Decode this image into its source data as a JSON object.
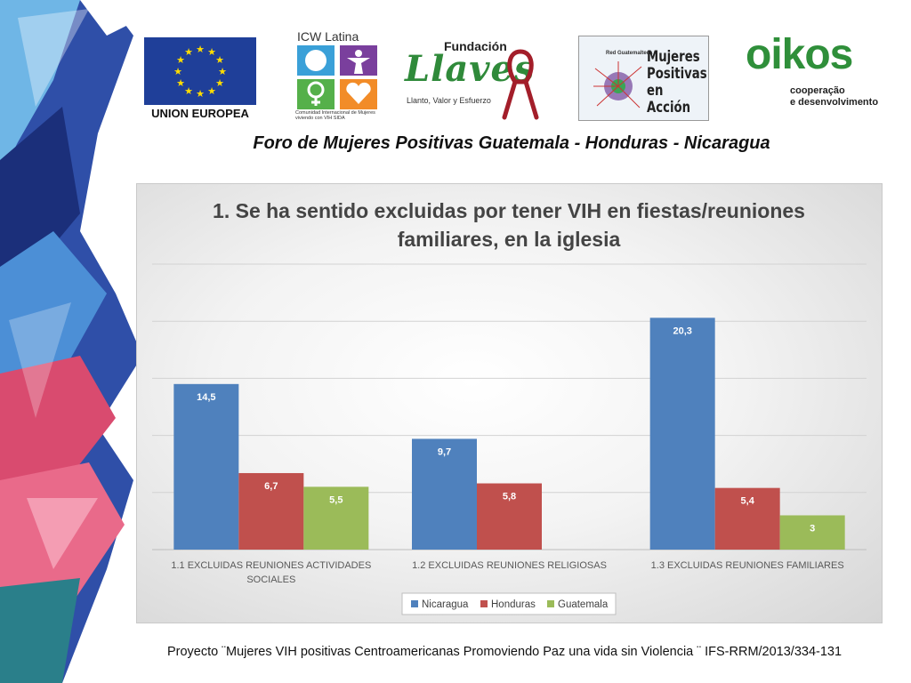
{
  "logos": {
    "eu": {
      "text": "UNION EUROPEA",
      "color": "#1f3f99"
    },
    "icw": {
      "title": "ICW Latina",
      "subtitle": "Comunidad Internacional de Mujeres viviendo con VIH SIDA"
    },
    "llaves": {
      "top": "Fundación",
      "name": "Llaves",
      "tagline": "Llanto, Valor y Esfuerzo"
    },
    "mujeres": {
      "network": "Red Guatemalteca",
      "name": "Mujeres Positivas en Acción"
    },
    "oikos": {
      "name": "oikos",
      "line1": "cooperação",
      "line2": "e desenvolvimento"
    }
  },
  "slide_title": "Foro de Mujeres Positivas Guatemala - Honduras - Nicaragua",
  "footer": "Proyecto ¨Mujeres VIH positivas Centroamericanas Promoviendo Paz una vida sin Violencia ¨ IFS-RRM/2013/334-131",
  "chart_data": {
    "type": "bar",
    "title": "1. Se ha sentido excluidas por tener VIH en fiestas/reuniones familiares, en la iglesia",
    "title_lines": [
      "1. Se ha sentido excluidas por tener VIH en fiestas/reuniones",
      "familiares, en la iglesia"
    ],
    "categories": [
      "1.1 EXCLUIDAS REUNIONES ACTIVIDADES SOCIALES",
      "1.2 EXCLUIDAS REUNIONES RELIGIOSAS",
      "1.3 EXCLUIDAS REUNIONES FAMILIARES"
    ],
    "category_lines": [
      [
        "1.1 EXCLUIDAS REUNIONES ACTIVIDADES",
        "SOCIALES"
      ],
      [
        "1.2 EXCLUIDAS REUNIONES RELIGIOSAS"
      ],
      [
        "1.3 EXCLUIDAS REUNIONES FAMILIARES"
      ]
    ],
    "series": [
      {
        "name": "Nicaragua",
        "color": "#4f81bd",
        "values": [
          14.5,
          9.7,
          20.3
        ],
        "labels": [
          "14,5",
          "9,7",
          "20,3"
        ]
      },
      {
        "name": "Honduras",
        "color": "#c0504d",
        "values": [
          6.7,
          5.8,
          5.4
        ],
        "labels": [
          "6,7",
          "5,8",
          "5,4"
        ]
      },
      {
        "name": "Guatemala",
        "color": "#9bbb59",
        "values": [
          5.5,
          null,
          3
        ],
        "labels": [
          "5,5",
          "",
          "3"
        ]
      }
    ],
    "ylim": [
      0,
      25
    ],
    "grid": true,
    "legend": "bottom"
  }
}
